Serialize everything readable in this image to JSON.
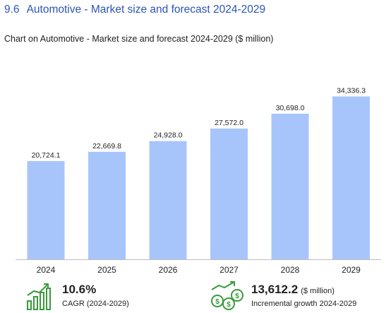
{
  "section": {
    "number": "9.6",
    "title": "Automotive - Market size and forecast 2024-2029"
  },
  "chart_title": "Chart on Automotive - Market size and forecast 2024-2029 ($ million)",
  "colors": {
    "bar": "#a8c5fb",
    "heading": "#2b55b4",
    "icon_green": "#3a9a3a"
  },
  "chart_data": {
    "type": "bar",
    "title": "Chart on Automotive - Market size and forecast 2024-2029 ($ million)",
    "categories": [
      "2024",
      "2025",
      "2026",
      "2027",
      "2028",
      "2029"
    ],
    "values": [
      20724.1,
      22669.8,
      24928.0,
      27572.0,
      30698.0,
      34336.3
    ],
    "value_labels": [
      "20,724.1",
      "22,669.8",
      "24,928.0",
      "27,572.0",
      "30,698.0",
      "34,336.3"
    ],
    "ylim": [
      0,
      36500
    ],
    "grid": false,
    "legend": "none"
  },
  "stats": {
    "cagr": {
      "value": "10.6%",
      "label": "CAGR (2024-2029)",
      "icon": "growth-chart-icon"
    },
    "incremental": {
      "value": "13,612.2",
      "unit": "($ million)",
      "label": "Incremental growth 2024-2029",
      "icon": "money-growth-icon"
    }
  }
}
